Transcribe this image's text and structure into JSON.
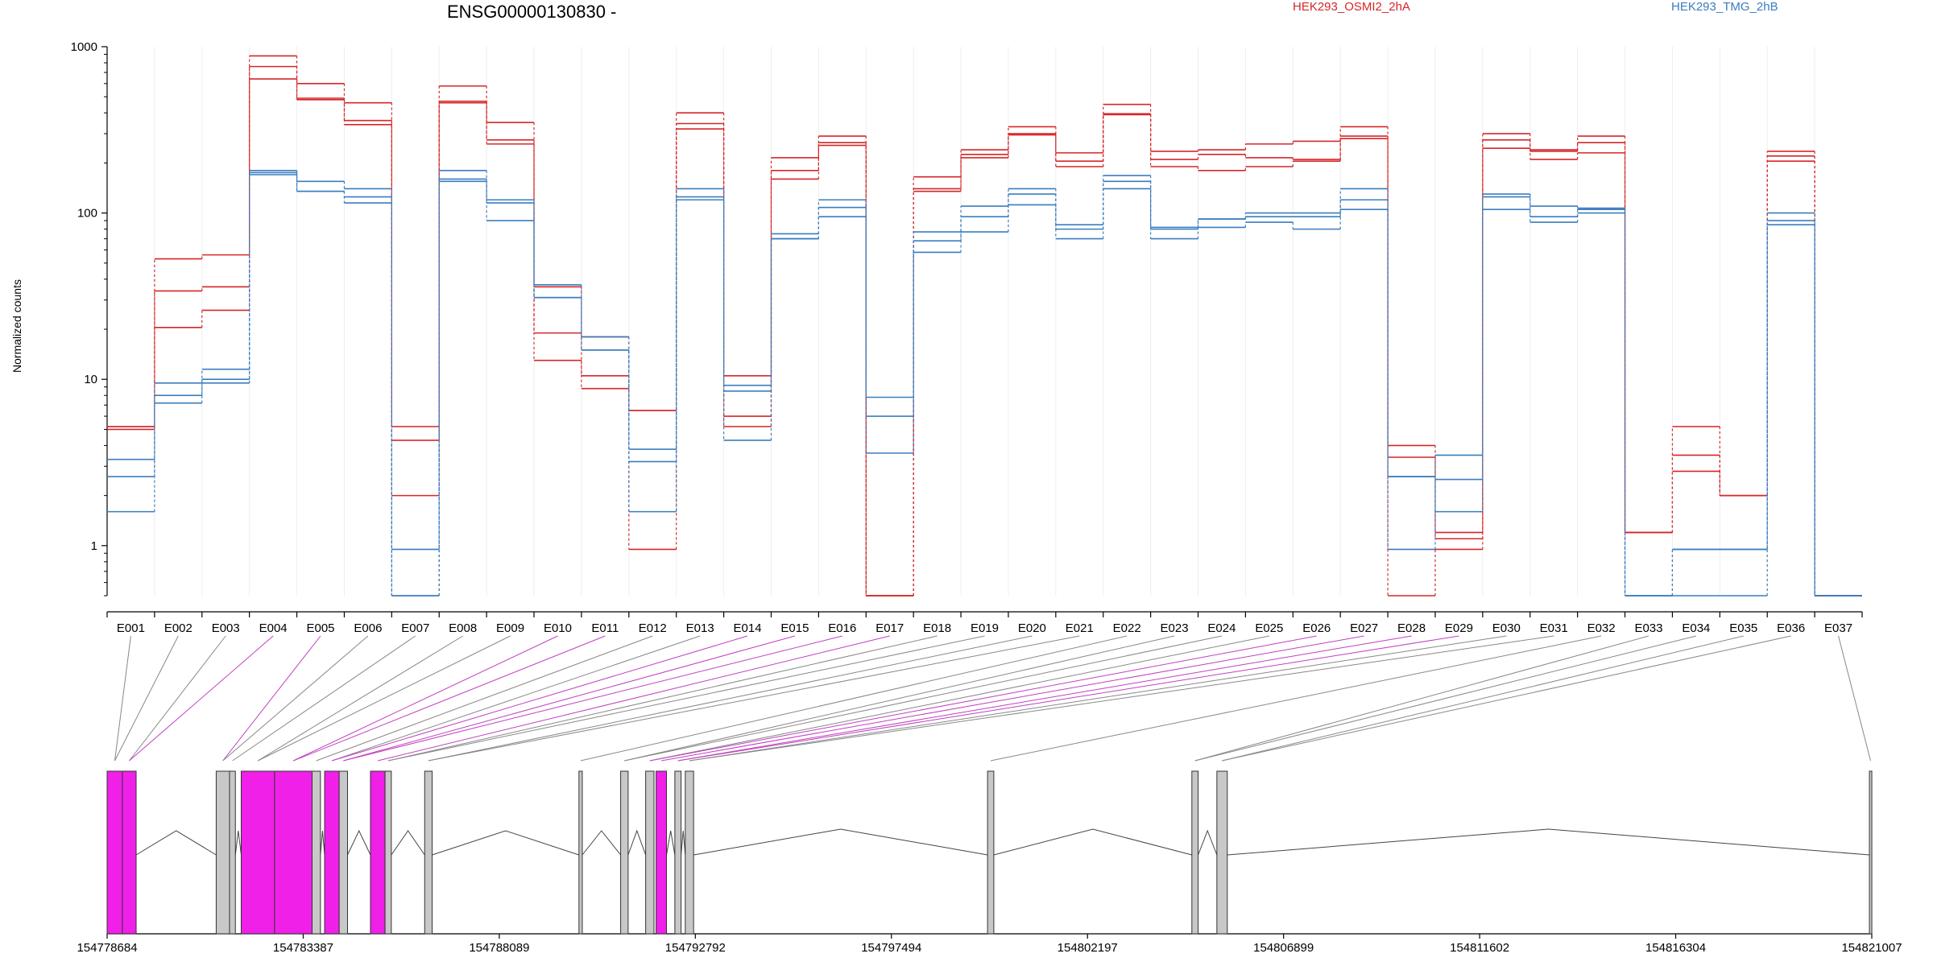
{
  "title": "ENSG00000130830 -",
  "ylabel": "Normalized counts",
  "legend": [
    {
      "name": "HEK293_OSMI2_2hA",
      "color": "#d62728"
    },
    {
      "name": "HEK293_TMG_2hB",
      "color": "#3a7dbf"
    }
  ],
  "colors": {
    "red": "#d62728",
    "blue": "#3a7dbf",
    "exon": "#c8c8c8",
    "highlight": "#f020e8",
    "connector": "#888888",
    "connector_highlight": "#c040c0"
  },
  "chart_data": {
    "type": "line",
    "yscale": "log",
    "ylim": [
      0.5,
      1000
    ],
    "yticks": [
      1,
      10,
      100,
      1000
    ],
    "categories": [
      "E001",
      "E002",
      "E003",
      "E004",
      "E005",
      "E006",
      "E007",
      "E008",
      "E009",
      "E010",
      "E011",
      "E012",
      "E013",
      "E014",
      "E015",
      "E016",
      "E017",
      "E018",
      "E019",
      "E020",
      "E021",
      "E022",
      "E023",
      "E024",
      "E025",
      "E026",
      "E027",
      "E028",
      "E029",
      "E030",
      "E031",
      "E032",
      "E033",
      "E034",
      "E035",
      "E036",
      "E037"
    ],
    "series": [
      {
        "name": "HEK293_OSMI2_2hA",
        "group": "red",
        "values": [
          5.2,
          53,
          56,
          880,
          600,
          460,
          5.2,
          580,
          350,
          36,
          18,
          6.5,
          400,
          10.5,
          215,
          290,
          0.5,
          165,
          240,
          330,
          230,
          450,
          235,
          240,
          260,
          270,
          330,
          4,
          1.2,
          300,
          240,
          290,
          1.2,
          5.2,
          2,
          235,
          0.5
        ]
      },
      {
        "name": "HEK293_OSMI2_2hA",
        "group": "red",
        "values": [
          5.0,
          34,
          36,
          760,
          490,
          360,
          4.3,
          470,
          275,
          19,
          10.5,
          6.5,
          345,
          6,
          180,
          265,
          0.5,
          140,
          225,
          300,
          205,
          395,
          210,
          225,
          215,
          210,
          290,
          3.4,
          1.1,
          275,
          235,
          265,
          1.2,
          3.5,
          2,
          220,
          0.5
        ]
      },
      {
        "name": "HEK293_OSMI2_2hA",
        "group": "red",
        "values": [
          5.2,
          20.5,
          26,
          640,
          480,
          340,
          2,
          460,
          260,
          13,
          8.8,
          0.95,
          320,
          5.2,
          160,
          255,
          0.5,
          135,
          215,
          295,
          190,
          390,
          190,
          180,
          190,
          205,
          280,
          0.5,
          0.95,
          245,
          210,
          230,
          1.2,
          2.8,
          2,
          205,
          0.5
        ]
      },
      {
        "name": "HEK293_TMG_2hB",
        "group": "blue",
        "values": [
          3.3,
          9.5,
          11.5,
          180,
          155,
          140,
          0.95,
          180,
          120,
          37,
          18,
          3.8,
          140,
          9.2,
          75,
          120,
          7.8,
          77,
          110,
          140,
          85,
          168,
          82,
          92,
          100,
          100,
          140,
          2.6,
          3.5,
          130,
          110,
          107,
          0.5,
          0.95,
          0.95,
          100,
          0.5
        ]
      },
      {
        "name": "HEK293_TMG_2hB",
        "group": "blue",
        "values": [
          2.6,
          8,
          10,
          175,
          135,
          125,
          0.5,
          160,
          115,
          31,
          15,
          3.2,
          125,
          8.5,
          70,
          108,
          6,
          68,
          95,
          130,
          80,
          155,
          80,
          92,
          95,
          95,
          120,
          2.6,
          1.6,
          125,
          95,
          105,
          0.5,
          0.95,
          0.95,
          90,
          0.5
        ]
      },
      {
        "name": "HEK293_TMG_2hB",
        "group": "blue",
        "values": [
          1.6,
          7.2,
          9.5,
          170,
          135,
          115,
          0.5,
          155,
          90,
          31,
          15,
          1.6,
          120,
          4.3,
          70,
          95,
          3.6,
          58,
          77,
          112,
          70,
          140,
          70,
          82,
          88,
          80,
          105,
          0.95,
          2.5,
          105,
          88,
          100,
          0.5,
          0.5,
          0.5,
          85,
          0.5
        ]
      }
    ],
    "gene_model": {
      "xlim": [
        154778684,
        154821007
      ],
      "ticks": [
        "154778684",
        "154783387",
        "154788089",
        "154792792",
        "154797494",
        "154802197",
        "154806899",
        "154811602",
        "154816304",
        "154821007"
      ],
      "exons": [
        {
          "start": 154778684,
          "end": 154779050,
          "fill": "highlight"
        },
        {
          "start": 154779050,
          "end": 154779380,
          "fill": "highlight"
        },
        {
          "start": 154781300,
          "end": 154781620,
          "fill": "exon"
        },
        {
          "start": 154781620,
          "end": 154781760,
          "fill": "exon"
        },
        {
          "start": 154781900,
          "end": 154782700,
          "fill": "highlight"
        },
        {
          "start": 154782700,
          "end": 154783600,
          "fill": "highlight"
        },
        {
          "start": 154783600,
          "end": 154783800,
          "fill": "exon"
        },
        {
          "start": 154783900,
          "end": 154784250,
          "fill": "highlight"
        },
        {
          "start": 154784250,
          "end": 154784450,
          "fill": "exon"
        },
        {
          "start": 154785000,
          "end": 154785350,
          "fill": "highlight"
        },
        {
          "start": 154785350,
          "end": 154785500,
          "fill": "exon"
        },
        {
          "start": 154786300,
          "end": 154786480,
          "fill": "exon"
        },
        {
          "start": 154790000,
          "end": 154790080,
          "fill": "exon"
        },
        {
          "start": 154791000,
          "end": 154791180,
          "fill": "exon"
        },
        {
          "start": 154791600,
          "end": 154791800,
          "fill": "exon"
        },
        {
          "start": 154791850,
          "end": 154792100,
          "fill": "highlight"
        },
        {
          "start": 154792300,
          "end": 154792450,
          "fill": "exon"
        },
        {
          "start": 154792550,
          "end": 154792750,
          "fill": "exon"
        },
        {
          "start": 154799800,
          "end": 154799950,
          "fill": "exon"
        },
        {
          "start": 154804700,
          "end": 154804850,
          "fill": "exon"
        },
        {
          "start": 154805300,
          "end": 154805550,
          "fill": "exon"
        },
        {
          "start": 154820950,
          "end": 154821007,
          "fill": "exon"
        }
      ]
    }
  }
}
